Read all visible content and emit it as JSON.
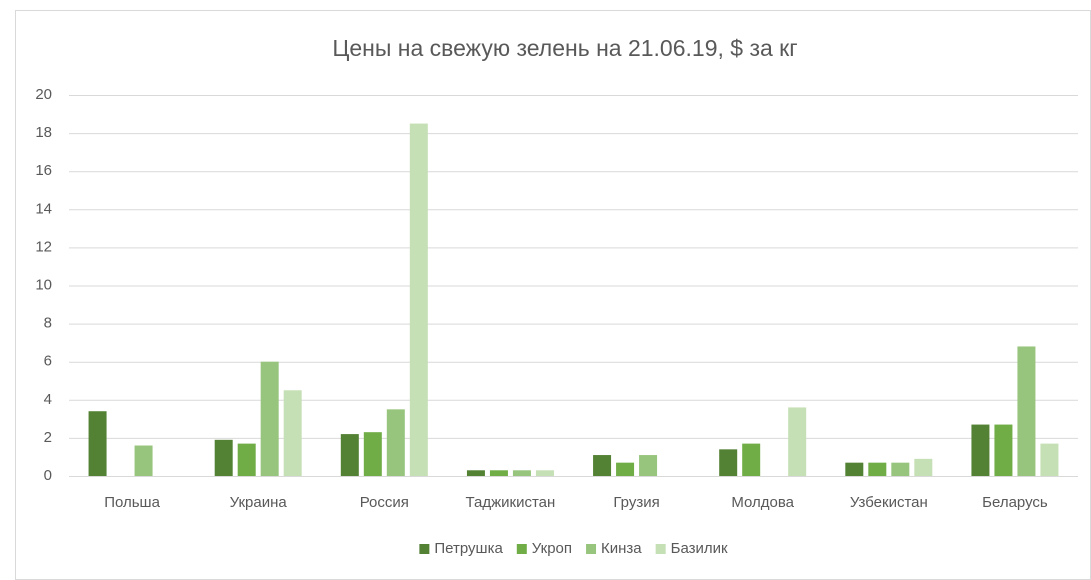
{
  "chart_data": {
    "type": "bar",
    "title": "Цены на свежую зелень на 21.06.19, $ за кг",
    "categories": [
      "Польша",
      "Украина",
      "Россия",
      "Таджикистан",
      "Грузия",
      "Молдова",
      "Узбекистан",
      "Беларусь"
    ],
    "series": [
      {
        "name": "Петрушка",
        "color": "#548235",
        "values": [
          3.4,
          1.9,
          2.2,
          0.3,
          1.1,
          1.4,
          0.7,
          2.7
        ]
      },
      {
        "name": "Укроп",
        "color": "#70ad47",
        "values": [
          null,
          1.7,
          2.3,
          0.3,
          0.7,
          1.7,
          0.7,
          2.7
        ]
      },
      {
        "name": "Кинза",
        "color": "#98c57e",
        "values": [
          1.6,
          6.0,
          3.5,
          0.3,
          1.1,
          null,
          0.7,
          6.8
        ]
      },
      {
        "name": "Базилик",
        "color": "#c5e0b4",
        "values": [
          null,
          4.5,
          18.5,
          0.3,
          null,
          3.6,
          0.9,
          1.7
        ]
      }
    ],
    "ylim": [
      0,
      20
    ],
    "yticks": [
      0,
      2,
      4,
      6,
      8,
      10,
      12,
      14,
      16,
      18,
      20
    ],
    "grid": true,
    "legend": "bottom"
  }
}
